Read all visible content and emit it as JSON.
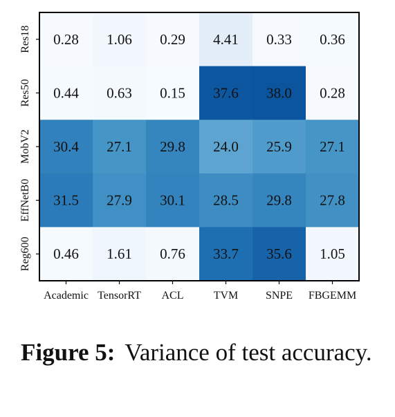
{
  "chart_data": {
    "type": "heatmap",
    "x_labels": [
      "Academic",
      "TensorRT",
      "ACL",
      "TVM",
      "SNPE",
      "FBGEMM"
    ],
    "y_labels": [
      "Res18",
      "Res50",
      "MobV2",
      "EffNetB0",
      "Reg600"
    ],
    "values": [
      [
        0.28,
        1.06,
        0.29,
        4.41,
        0.33,
        0.36
      ],
      [
        0.44,
        0.63,
        0.15,
        37.6,
        38.0,
        0.28
      ],
      [
        30.4,
        27.1,
        29.8,
        24.0,
        25.9,
        27.1
      ],
      [
        31.5,
        27.9,
        30.1,
        28.5,
        29.8,
        27.8
      ],
      [
        0.46,
        1.61,
        0.76,
        33.7,
        35.6,
        1.05
      ]
    ],
    "display_values": [
      [
        "0.28",
        "1.06",
        "0.29",
        "4.41",
        "0.33",
        "0.36"
      ],
      [
        "0.44",
        "0.63",
        "0.15",
        "37.6",
        "38.0",
        "0.28"
      ],
      [
        "30.4",
        "27.1",
        "29.8",
        "24.0",
        "25.9",
        "27.1"
      ],
      [
        "31.5",
        "27.9",
        "30.1",
        "28.5",
        "29.8",
        "27.8"
      ],
      [
        "0.46",
        "1.61",
        "0.76",
        "33.7",
        "35.6",
        "1.05"
      ]
    ],
    "colormap": "Blues",
    "color_range": [
      0,
      38.0
    ],
    "grid": false
  },
  "caption": {
    "label": "Figure 5:",
    "text": "Variance of test accuracy."
  }
}
